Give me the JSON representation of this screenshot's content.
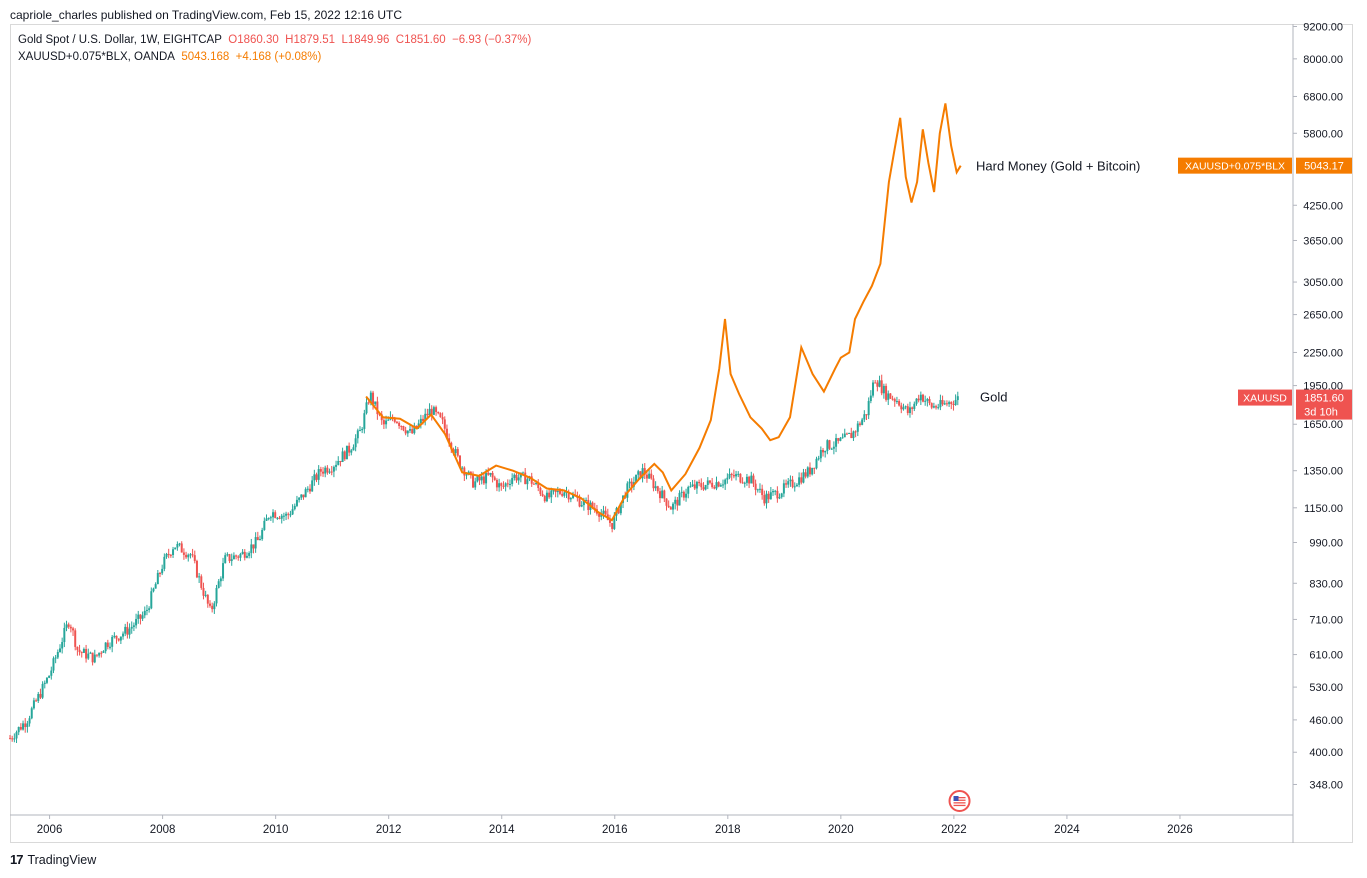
{
  "header": {
    "published": "capriole_charles published on TradingView.com, Feb 15, 2022 12:16 UTC"
  },
  "legend": {
    "gold": {
      "label": "Gold Spot / U.S. Dollar, 1W, EIGHTCAP",
      "open": "O1860.30",
      "high": "H1879.51",
      "low": "L1849.96",
      "close": "C1851.60",
      "change": "−6.93 (−0.37%)"
    },
    "hardmoney": {
      "label": "XAUUSD+0.075*BLX, OANDA",
      "value": "5043.168",
      "change": "+4.168 (+0.08%)"
    }
  },
  "annotations": {
    "hard_money": "Hard Money (Gold + Bitcoin)",
    "gold": "Gold"
  },
  "price_tags": {
    "hardmoney_symbol": "XAUUSD+0.075*BLX",
    "hardmoney_value": "5043.17",
    "gold_symbol": "XAUUSD",
    "gold_value": "1851.60",
    "gold_countdown": "3d 10h"
  },
  "colors": {
    "hard_money_line": "#f57c00",
    "candle_up": "#26a69a",
    "candle_down": "#ef5350",
    "gold_tag": "#ef5350",
    "hard_money_tag": "#f57c00"
  },
  "footer": {
    "brand": "TradingView",
    "logo_icon": "tradingview-logo-icon"
  },
  "events": {
    "icon": "us-flag-economic-event-icon"
  },
  "chart_data": {
    "type": "line",
    "y_scale": "log",
    "y_ticks": [
      348,
      400,
      460,
      530,
      610,
      710,
      830,
      990,
      1150,
      1350,
      1650,
      1950,
      2250,
      2650,
      3050,
      3650,
      4250,
      5800,
      6800,
      8000,
      9200
    ],
    "y_tick_labels": [
      "348.00",
      "400.00",
      "460.00",
      "530.00",
      "610.00",
      "710.00",
      "830.00",
      "990.00",
      "1150.00",
      "1350.00",
      "1650.00",
      "1950.00",
      "2250.00",
      "2650.00",
      "3050.00",
      "3650.00",
      "4250.00",
      "5800.00",
      "6800.00",
      "8000.00",
      "9200.00"
    ],
    "x_ticks": [
      2006,
      2008,
      2010,
      2012,
      2014,
      2016,
      2018,
      2020,
      2022,
      2024,
      2026
    ],
    "x_tick_labels": [
      "2006",
      "2008",
      "2010",
      "2012",
      "2014",
      "2016",
      "2018",
      "2020",
      "2022",
      "2024",
      "2026"
    ],
    "x_range": [
      2005.3,
      2028.0
    ],
    "y_range": [
      305,
      9300
    ],
    "series": [
      {
        "name": "Gold",
        "kind": "candles",
        "x": [
          2005.3,
          2005.6,
          2006.0,
          2006.35,
          2006.5,
          2006.8,
          2007.0,
          2007.4,
          2007.7,
          2008.0,
          2008.2,
          2008.5,
          2008.85,
          2009.1,
          2009.4,
          2009.7,
          2009.9,
          2010.2,
          2010.5,
          2010.8,
          2011.0,
          2011.3,
          2011.5,
          2011.67,
          2011.9,
          2012.1,
          2012.4,
          2012.75,
          2012.95,
          2013.25,
          2013.5,
          2013.8,
          2014.0,
          2014.2,
          2014.5,
          2014.8,
          2015.1,
          2015.4,
          2015.7,
          2015.95,
          2016.2,
          2016.5,
          2016.85,
          2017.0,
          2017.3,
          2017.6,
          2017.9,
          2018.1,
          2018.4,
          2018.65,
          2018.9,
          2019.2,
          2019.45,
          2019.7,
          2019.95,
          2020.2,
          2020.45,
          2020.6,
          2020.8,
          2021.0,
          2021.2,
          2021.4,
          2021.6,
          2021.8,
          2022.0,
          2022.1
        ],
        "values": [
          425,
          460,
          560,
          710,
          620,
          600,
          640,
          680,
          730,
          900,
          980,
          940,
          730,
          920,
          940,
          1000,
          1130,
          1110,
          1220,
          1350,
          1380,
          1480,
          1600,
          1880,
          1640,
          1700,
          1580,
          1760,
          1660,
          1400,
          1280,
          1320,
          1250,
          1320,
          1300,
          1200,
          1240,
          1180,
          1140,
          1070,
          1240,
          1350,
          1210,
          1150,
          1250,
          1270,
          1290,
          1320,
          1300,
          1200,
          1230,
          1290,
          1350,
          1500,
          1520,
          1580,
          1730,
          2020,
          1880,
          1830,
          1730,
          1880,
          1780,
          1790,
          1830,
          1851
        ]
      },
      {
        "name": "XAUUSD+0.075*BLX",
        "kind": "line",
        "x": [
          2011.6,
          2011.9,
          2012.2,
          2012.5,
          2012.75,
          2013.0,
          2013.3,
          2013.6,
          2013.9,
          2014.2,
          2014.5,
          2014.8,
          2015.1,
          2015.4,
          2015.7,
          2015.95,
          2016.2,
          2016.45,
          2016.7,
          2016.85,
          2017.0,
          2017.25,
          2017.5,
          2017.7,
          2017.85,
          2017.95,
          2018.05,
          2018.2,
          2018.4,
          2018.6,
          2018.75,
          2018.9,
          2019.1,
          2019.3,
          2019.5,
          2019.7,
          2019.9,
          2020.0,
          2020.15,
          2020.25,
          2020.4,
          2020.55,
          2020.7,
          2020.85,
          2020.95,
          2021.05,
          2021.15,
          2021.25,
          2021.35,
          2021.45,
          2021.55,
          2021.65,
          2021.75,
          2021.85,
          2021.95,
          2022.05,
          2022.12
        ],
        "values": [
          1860,
          1700,
          1690,
          1620,
          1720,
          1580,
          1340,
          1320,
          1380,
          1350,
          1310,
          1250,
          1240,
          1200,
          1130,
          1090,
          1220,
          1310,
          1390,
          1340,
          1240,
          1330,
          1490,
          1680,
          2100,
          2600,
          2050,
          1880,
          1700,
          1620,
          1540,
          1560,
          1700,
          2300,
          2050,
          1900,
          2100,
          2200,
          2250,
          2600,
          2800,
          3000,
          3300,
          4700,
          5400,
          6200,
          4800,
          4300,
          4700,
          5900,
          5100,
          4500,
          5800,
          6600,
          5500,
          4900,
          5043
        ]
      }
    ]
  }
}
